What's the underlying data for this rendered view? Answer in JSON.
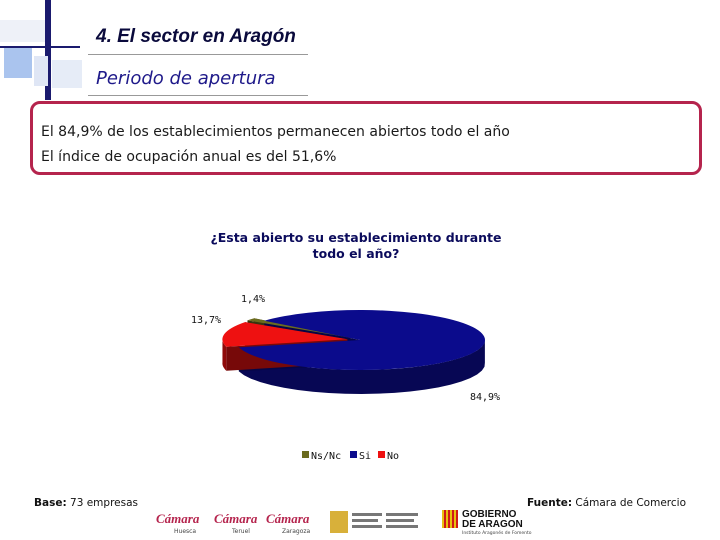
{
  "header": {
    "title": "4. El sector en Aragón",
    "subtitle": "Periodo de apertura"
  },
  "summary": {
    "line1": "El 84,9% de los establecimientos permanecen abiertos todo el año",
    "line2": "El índice de ocupación anual es del 51,6%"
  },
  "chart_data": {
    "type": "pie",
    "title_line1": "¿Esta abierto su establecimiento durante",
    "title_line2": "todo el año?",
    "slices": [
      {
        "name": "Ns/Nc",
        "value": 1.4,
        "label": "1,4%",
        "color": "#6b6b1e"
      },
      {
        "name": "Si",
        "value": 84.9,
        "label": "84,9%",
        "color": "#0b0b8c"
      },
      {
        "name": "No",
        "value": 13.7,
        "label": "13,7%",
        "color": "#ee1111"
      }
    ],
    "legend": [
      "Ns/Nc",
      "Si",
      "No"
    ]
  },
  "footer": {
    "base_label": "Base:",
    "base_value": "73 empresas",
    "source_label": "Fuente:",
    "source_value": "Cámara de Comercio"
  },
  "logos": {
    "camara": "Cámara",
    "huesca": "Huesca",
    "teruel": "Teruel",
    "zaragoza": "Zaragoza",
    "gob1": "GOBIERNO",
    "gob2": "DE ARAGON",
    "gob_sub": "Instituto Aragonés de Fomento"
  },
  "colors": {
    "accent": "#b5244d",
    "title": "#0a0a3c",
    "subtitle": "#1f1a8a"
  }
}
